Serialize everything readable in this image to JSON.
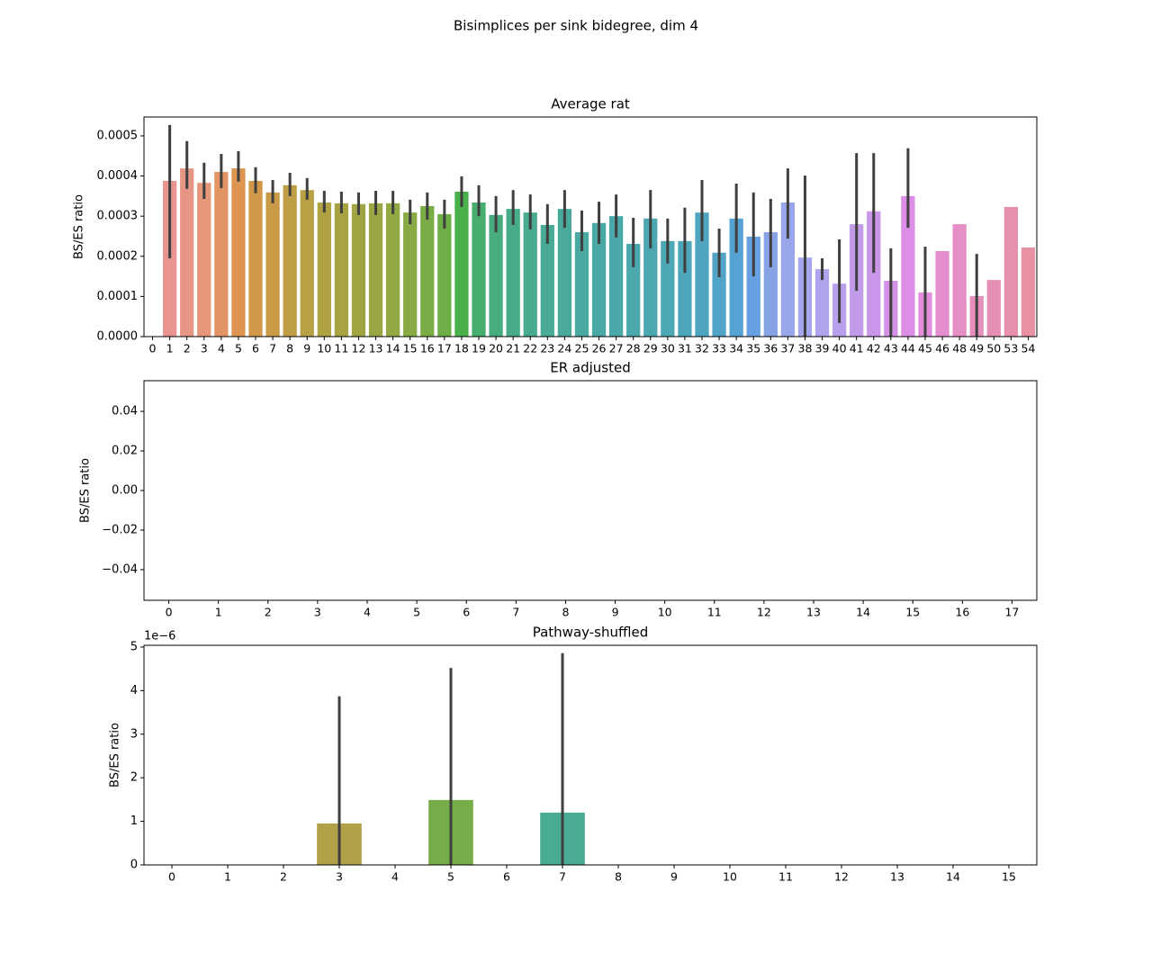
{
  "suptitle": "Bisimplices per sink bidegree, dim 4",
  "chart_data": [
    {
      "type": "bar",
      "title": "Average rat",
      "ylabel": "BS/ES ratio",
      "categories": [
        0,
        1,
        2,
        3,
        4,
        5,
        6,
        7,
        8,
        9,
        10,
        11,
        12,
        13,
        14,
        15,
        16,
        17,
        18,
        19,
        20,
        21,
        22,
        23,
        24,
        25,
        26,
        27,
        28,
        29,
        30,
        31,
        32,
        33,
        34,
        35,
        36,
        37,
        38,
        39,
        40,
        41,
        42,
        43,
        44,
        45,
        46,
        48,
        49,
        50,
        53,
        54
      ],
      "values": [
        null,
        0.000388,
        0.000419,
        0.000383,
        0.00041,
        0.000419,
        0.000388,
        0.000359,
        0.000377,
        0.000365,
        0.000334,
        0.000332,
        0.00033,
        0.000332,
        0.000332,
        0.000309,
        0.000325,
        0.000305,
        0.000361,
        0.000334,
        0.000303,
        0.000318,
        0.000309,
        0.000278,
        0.000318,
        0.00026,
        0.000283,
        0.0003,
        0.000231,
        0.000294,
        0.000238,
        0.000238,
        0.000309,
        0.000209,
        0.000294,
        0.000249,
        0.00026,
        0.000334,
        0.000197,
        0.000168,
        0.000132,
        0.00028,
        0.000312,
        0.000139,
        0.00035,
        0.00011,
        0.000213,
        0.00028,
        0.000101,
        0.000141,
        0.000323,
        0.000222
      ],
      "ci_low": [
        null,
        0.000195,
        0.000368,
        0.000343,
        0.00037,
        0.000386,
        0.000357,
        0.000332,
        0.00035,
        0.000341,
        0.000309,
        0.000307,
        0.000303,
        0.000303,
        0.000305,
        0.00028,
        0.000291,
        0.000269,
        0.000323,
        0.0003,
        0.00026,
        0.000278,
        0.000267,
        0.000231,
        0.000271,
        0.000213,
        0.000231,
        0.000247,
        0.000173,
        0.00022,
        0.000182,
        0.000159,
        0.000238,
        0.000148,
        0.000209,
        0.00015,
        0.000173,
        0.000244,
        0,
        0.000141,
        3.4e-05,
        0.000114,
        0.000159,
        0,
        0.000271,
        0,
        null,
        null,
        0,
        null,
        null,
        null
      ],
      "ci_high": [
        null,
        0.000527,
        0.000487,
        0.000433,
        0.000455,
        0.000462,
        0.000422,
        0.00039,
        0.000408,
        0.000395,
        0.000363,
        0.000361,
        0.000359,
        0.000363,
        0.000363,
        0.000341,
        0.000359,
        0.000341,
        0.000399,
        0.000377,
        0.00035,
        0.000365,
        0.000354,
        0.00033,
        0.000365,
        0.000314,
        0.000336,
        0.000354,
        0.000296,
        0.000365,
        0.000294,
        0.000321,
        0.00039,
        0.000269,
        0.000381,
        0.000359,
        0.000343,
        0.000419,
        0.000401,
        0.000195,
        0.000242,
        0.000457,
        0.000457,
        0.00022,
        0.000469,
        0.000224,
        null,
        null,
        0.000206,
        null,
        null,
        null
      ],
      "colors": [
        "#e9969b",
        "#e8958f",
        "#e79685",
        "#e5967b",
        "#e29464",
        "#dc9450",
        "#d29849",
        "#c99b46",
        "#c09e45",
        "#b8a044",
        "#afa243",
        "#a7a343",
        "#a0a443",
        "#99a643",
        "#91a843",
        "#88aa44",
        "#7cac45",
        "#6dae46",
        "#4ab04a",
        "#47ae70",
        "#47ad7f",
        "#48ac89",
        "#48ab90",
        "#49ab96",
        "#49aa9b",
        "#4aa9a0",
        "#4aa9a4",
        "#4ba8a8",
        "#4ba8ad",
        "#4ca7b1",
        "#4da7b5",
        "#4da6ba",
        "#4fa5c0",
        "#51a4c8",
        "#56a2d4",
        "#66a0e0",
        "#86a3e6",
        "#99a6eb",
        "#a5a6ed",
        "#aea4ed",
        "#b8a0ec",
        "#c19bea",
        "#ca96e9",
        "#d392e8",
        "#dd8ee6",
        "#e28ddc",
        "#e48ed0",
        "#e58fc6",
        "#e68fbd",
        "#e68fb4",
        "#e690ab",
        "#e791a3"
      ],
      "errorbar_color": "#3f3f3f",
      "ylim": [
        0,
        0.000547
      ],
      "yticks": [
        {
          "value": 0,
          "label": "0.0000"
        },
        {
          "value": 0.0001,
          "label": "0.0001"
        },
        {
          "value": 0.0002,
          "label": "0.0002"
        },
        {
          "value": 0.0003,
          "label": "0.0003"
        },
        {
          "value": 0.0004,
          "label": "0.0004"
        },
        {
          "value": 0.0005,
          "label": "0.0005"
        }
      ]
    },
    {
      "type": "bar",
      "title": "ER adjusted",
      "ylabel": "BS/ES ratio",
      "categories": [
        0,
        1,
        2,
        3,
        4,
        5,
        6,
        7,
        8,
        9,
        10,
        11,
        12,
        13,
        14,
        15,
        16,
        17
      ],
      "values": [
        null,
        null,
        null,
        null,
        null,
        null,
        null,
        null,
        null,
        null,
        null,
        null,
        null,
        null,
        null,
        null,
        null,
        null
      ],
      "ylim": [
        -0.0555,
        0.0555
      ],
      "yticks": [
        {
          "value": -0.04,
          "label": "−0.04"
        },
        {
          "value": -0.02,
          "label": "−0.02"
        },
        {
          "value": 0,
          "label": "0.00"
        },
        {
          "value": 0.02,
          "label": "0.02"
        },
        {
          "value": 0.04,
          "label": "0.04"
        }
      ]
    },
    {
      "type": "bar",
      "title": "Pathway-shuffled",
      "ylabel": "BS/ES ratio",
      "offset_text": "1e−6",
      "categories": [
        0,
        1,
        2,
        3,
        4,
        5,
        6,
        7,
        8,
        9,
        10,
        11,
        12,
        13,
        14,
        15
      ],
      "values": [
        0,
        0,
        0,
        9.5e-07,
        0,
        1.49e-06,
        0,
        1.2e-06,
        0,
        0,
        0,
        0,
        0,
        0,
        0,
        0
      ],
      "ci_low": [
        null,
        null,
        null,
        0,
        null,
        0,
        null,
        0,
        null,
        null,
        null,
        null,
        null,
        null,
        null,
        null
      ],
      "ci_high": [
        null,
        null,
        null,
        3.87e-06,
        null,
        4.52e-06,
        null,
        4.86e-06,
        null,
        null,
        null,
        null,
        null,
        null,
        null,
        null
      ],
      "colors": [
        "#e8948f",
        "#e29a5b",
        "#c9a046",
        "#b1a249",
        "#98a742",
        "#76ad48",
        "#47b06f",
        "#49ab93",
        "#4baaa6",
        "#4ea8b8",
        "#54a3d3",
        "#8aa3e6",
        "#b5a0ec",
        "#d692e8",
        "#e48ed1",
        "#e690aa"
      ],
      "errorbar_color": "#3f3f3f",
      "ylim": [
        0,
        5.04e-06
      ],
      "yticks": [
        0,
        {
          "value": 1e-06,
          "label": "1"
        },
        {
          "value": 2e-06,
          "label": "2"
        },
        {
          "value": 3e-06,
          "label": "3"
        },
        {
          "value": 4e-06,
          "label": "4"
        },
        {
          "value": 5e-06,
          "label": "5"
        }
      ]
    }
  ]
}
